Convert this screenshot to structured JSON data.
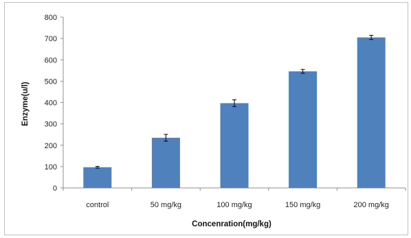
{
  "chart_data": {
    "type": "bar",
    "title": "",
    "xlabel": "Concenration(mg/kg)",
    "ylabel": "Enzyme(u/l)",
    "categories": [
      "control",
      "50 mg/kg",
      "100 mg/kg",
      "150 mg/kg",
      "200 mg/kg"
    ],
    "series": [
      {
        "values": [
          97,
          235,
          397,
          546,
          705
        ],
        "errors": [
          4,
          16,
          16,
          9,
          10
        ],
        "color": "#4f81bd"
      }
    ],
    "ylim": [
      0,
      800
    ],
    "yticks": [
      0,
      100,
      200,
      300,
      400,
      500,
      600,
      700,
      800
    ],
    "grid": false,
    "legend": "none"
  }
}
